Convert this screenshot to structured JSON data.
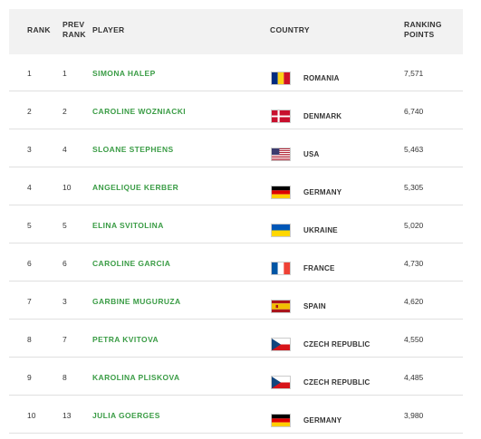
{
  "table": {
    "headers": {
      "rank": "RANK",
      "prev_rank_line1": "PREV",
      "prev_rank_line2": "RANK",
      "player": "PLAYER",
      "country": "COUNTRY",
      "points_line1": "RANKING",
      "points_line2": "POINTS"
    },
    "rows": [
      {
        "rank": "1",
        "prev": "1",
        "player": "SIMONA HALEP",
        "flag": "romania-flag-icon",
        "country": "ROMANIA",
        "points": "7,571"
      },
      {
        "rank": "2",
        "prev": "2",
        "player": "CAROLINE WOZNIACKI",
        "flag": "denmark-flag-icon",
        "country": "DENMARK",
        "points": "6,740"
      },
      {
        "rank": "3",
        "prev": "4",
        "player": "SLOANE STEPHENS",
        "flag": "usa-flag-icon",
        "country": "USA",
        "points": "5,463"
      },
      {
        "rank": "4",
        "prev": "10",
        "player": "ANGELIQUE KERBER",
        "flag": "germany-flag-icon",
        "country": "GERMANY",
        "points": "5,305"
      },
      {
        "rank": "5",
        "prev": "5",
        "player": "ELINA SVITOLINA",
        "flag": "ukraine-flag-icon",
        "country": "UKRAINE",
        "points": "5,020"
      },
      {
        "rank": "6",
        "prev": "6",
        "player": "CAROLINE GARCIA",
        "flag": "france-flag-icon",
        "country": "FRANCE",
        "points": "4,730"
      },
      {
        "rank": "7",
        "prev": "3",
        "player": "GARBINE MUGURUZA",
        "flag": "spain-flag-icon",
        "country": "SPAIN",
        "points": "4,620"
      },
      {
        "rank": "8",
        "prev": "7",
        "player": "PETRA KVITOVA",
        "flag": "czech-flag-icon",
        "country": "CZECH REPUBLIC",
        "points": "4,550"
      },
      {
        "rank": "9",
        "prev": "8",
        "player": "KAROLINA PLISKOVA",
        "flag": "czech-flag-icon",
        "country": "CZECH REPUBLIC",
        "points": "4,485"
      },
      {
        "rank": "10",
        "prev": "13",
        "player": "JULIA GOERGES",
        "flag": "germany-flag-icon",
        "country": "GERMANY",
        "points": "3,980"
      }
    ]
  },
  "colors": {
    "header_bg": "#f2f2f2",
    "player_link": "#3a9c45",
    "divider": "#e0e0e0"
  }
}
